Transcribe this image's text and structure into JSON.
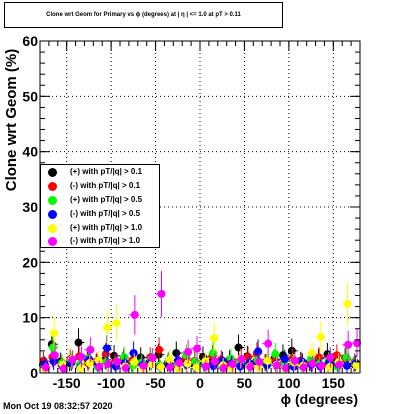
{
  "title": "Clone wrt Geom for Primary vs ϕ (degrees) at | η | <= 1.0 at pT > 0.11",
  "ylabel": "Clone wrt  Geom (%)",
  "xlabel": "ϕ (degrees)",
  "timestamp": "Mon Oct 19 08:32:57 2020",
  "legend": [
    {
      "label": "(+) with pT/|q| > 0.1",
      "color": "#000000"
    },
    {
      "label": "(-) with pT/|q| > 0.1",
      "color": "#ff0000"
    },
    {
      "label": "(+) with pT/|q| > 0.5",
      "color": "#00ff00"
    },
    {
      "label": "(-) with pT/|q| > 0.5",
      "color": "#0000ff"
    },
    {
      "label": "(+) with pT/|q| > 1.0",
      "color": "#ffff00"
    },
    {
      "label": "(-) with pT/|q| > 1.0",
      "color": "#ff00ff"
    }
  ],
  "chart_data": {
    "type": "scatter",
    "title": "Clone wrt Geom for Primary vs ϕ (degrees) at | η | <= 1.0 at pT > 0.11",
    "xlabel": "ϕ (degrees)",
    "ylabel": "Clone wrt  Geom (%)",
    "xlim": [
      -180,
      180
    ],
    "ylim": [
      0,
      60
    ],
    "grid": true,
    "legend_position": "middle-left",
    "x_ticks": [
      -150,
      -100,
      -50,
      0,
      50,
      100,
      150
    ],
    "y_ticks": [
      0,
      10,
      20,
      30,
      40,
      50,
      60
    ],
    "series": [
      {
        "name": "(+) with pT/|q| > 0.1",
        "color": "#000000",
        "x": [
          -175,
          -165,
          -155,
          -145,
          -135,
          -125,
          -115,
          -105,
          -95,
          -85,
          -75,
          -65,
          -55,
          -45,
          -35,
          -25,
          -15,
          -5,
          5,
          15,
          25,
          35,
          45,
          55,
          65,
          75,
          85,
          95,
          105,
          115,
          125,
          135,
          145,
          155,
          165,
          175
        ],
        "y": [
          1.5,
          5.2,
          2.1,
          1.8,
          5.5,
          2.6,
          1.9,
          2.4,
          3.1,
          2.2,
          1.6,
          2.8,
          2.0,
          3.3,
          1.7,
          3.6,
          2.3,
          1.5,
          2.9,
          2.0,
          1.8,
          2.4,
          4.6,
          3.0,
          2.1,
          1.9,
          2.5,
          3.2,
          4.0,
          2.2,
          1.8,
          2.6,
          3.4,
          2.0,
          2.7,
          1.6
        ]
      },
      {
        "name": "(-) with pT/|q| > 0.1",
        "color": "#ff0000",
        "x": [
          -175,
          -165,
          -155,
          -145,
          -135,
          -125,
          -115,
          -105,
          -95,
          -85,
          -75,
          -65,
          -55,
          -45,
          -35,
          -25,
          -15,
          -5,
          5,
          15,
          25,
          35,
          45,
          55,
          65,
          75,
          85,
          95,
          105,
          115,
          125,
          135,
          145,
          155,
          165,
          175
        ],
        "y": [
          2.2,
          2.9,
          1.6,
          2.5,
          3.0,
          1.8,
          2.1,
          3.4,
          1.9,
          2.6,
          2.3,
          1.7,
          2.8,
          4.2,
          2.0,
          1.5,
          2.7,
          2.2,
          1.8,
          3.1,
          2.4,
          1.6,
          2.0,
          2.9,
          3.5,
          1.9,
          2.3,
          1.7,
          2.6,
          2.1,
          1.9,
          2.8,
          1.5,
          3.2,
          2.4,
          2.0
        ]
      },
      {
        "name": "(+) with pT/|q| > 0.5",
        "color": "#00ff00",
        "x": [
          -175,
          -165,
          -155,
          -145,
          -135,
          -125,
          -115,
          -105,
          -95,
          -85,
          -75,
          -65,
          -55,
          -45,
          -35,
          -25,
          -15,
          -5,
          5,
          15,
          25,
          35,
          45,
          55,
          65,
          75,
          85,
          95,
          105,
          115,
          125,
          135,
          145,
          155,
          165,
          175
        ],
        "y": [
          1.2,
          4.6,
          1.8,
          2.3,
          1.5,
          2.7,
          1.1,
          2.0,
          1.6,
          2.9,
          1.3,
          1.9,
          2.4,
          1.4,
          2.2,
          1.7,
          3.2,
          2.1,
          1.5,
          3.6,
          1.2,
          2.6,
          1.8,
          1.4,
          2.3,
          1.9,
          3.4,
          1.6,
          2.0,
          1.3,
          2.5,
          1.7,
          2.2,
          1.1,
          2.8,
          1.9
        ]
      },
      {
        "name": "(-) with pT/|q| > 0.5",
        "color": "#0000ff",
        "x": [
          -175,
          -165,
          -155,
          -145,
          -135,
          -125,
          -115,
          -105,
          -95,
          -85,
          -75,
          -65,
          -55,
          -45,
          -35,
          -25,
          -15,
          -5,
          5,
          15,
          25,
          35,
          45,
          55,
          65,
          75,
          85,
          95,
          105,
          115,
          125,
          135,
          145,
          155,
          165,
          175
        ],
        "y": [
          1.6,
          2.1,
          1.3,
          1.9,
          1.0,
          2.4,
          1.7,
          4.5,
          1.2,
          1.8,
          3.6,
          1.4,
          2.0,
          1.1,
          1.6,
          2.3,
          1.5,
          1.0,
          1.9,
          1.3,
          2.2,
          1.7,
          1.2,
          1.8,
          3.9,
          1.4,
          1.6,
          2.5,
          1.1,
          2.0,
          1.5,
          1.2,
          1.9,
          1.6,
          1.3,
          1.8
        ]
      },
      {
        "name": "(+) with pT/|q| > 1.0",
        "color": "#ffff00",
        "x": [
          -175,
          -165,
          -155,
          -145,
          -135,
          -125,
          -115,
          -105,
          -95,
          -85,
          -75,
          -65,
          -55,
          -45,
          -35,
          -25,
          -15,
          -5,
          5,
          15,
          25,
          35,
          45,
          55,
          65,
          75,
          85,
          95,
          105,
          115,
          125,
          135,
          145,
          155,
          165,
          175
        ],
        "y": [
          0.8,
          7.2,
          1.5,
          2.5,
          0.9,
          1.8,
          2.3,
          8.2,
          9.0,
          1.2,
          2.0,
          0.9,
          1.6,
          1.1,
          2.4,
          0.8,
          1.7,
          1.0,
          2.1,
          6.3,
          1.4,
          0.9,
          2.6,
          1.2,
          1.0,
          2.2,
          1.5,
          0.8,
          1.9,
          1.3,
          3.6,
          6.5,
          1.1,
          2.0,
          12.5,
          1.4
        ]
      },
      {
        "name": "(-) with pT/|q| > 1.0",
        "color": "#ff00ff",
        "x": [
          -175,
          -165,
          -155,
          -145,
          -135,
          -125,
          -115,
          -105,
          -95,
          -85,
          -75,
          -65,
          -55,
          -45,
          -35,
          -25,
          -15,
          -5,
          5,
          15,
          25,
          35,
          45,
          55,
          65,
          75,
          85,
          95,
          105,
          115,
          125,
          135,
          145,
          155,
          165,
          175
        ],
        "y": [
          1.0,
          3.2,
          0.8,
          2.4,
          2.9,
          4.2,
          1.1,
          1.6,
          2.0,
          0.9,
          10.5,
          1.3,
          2.7,
          14.3,
          1.0,
          1.8,
          3.8,
          4.4,
          1.2,
          2.1,
          0.9,
          1.6,
          2.5,
          1.1,
          2.0,
          5.3,
          1.4,
          0.9,
          2.2,
          1.0,
          1.7,
          1.3,
          2.8,
          1.5,
          5.1,
          5.4
        ]
      }
    ]
  }
}
